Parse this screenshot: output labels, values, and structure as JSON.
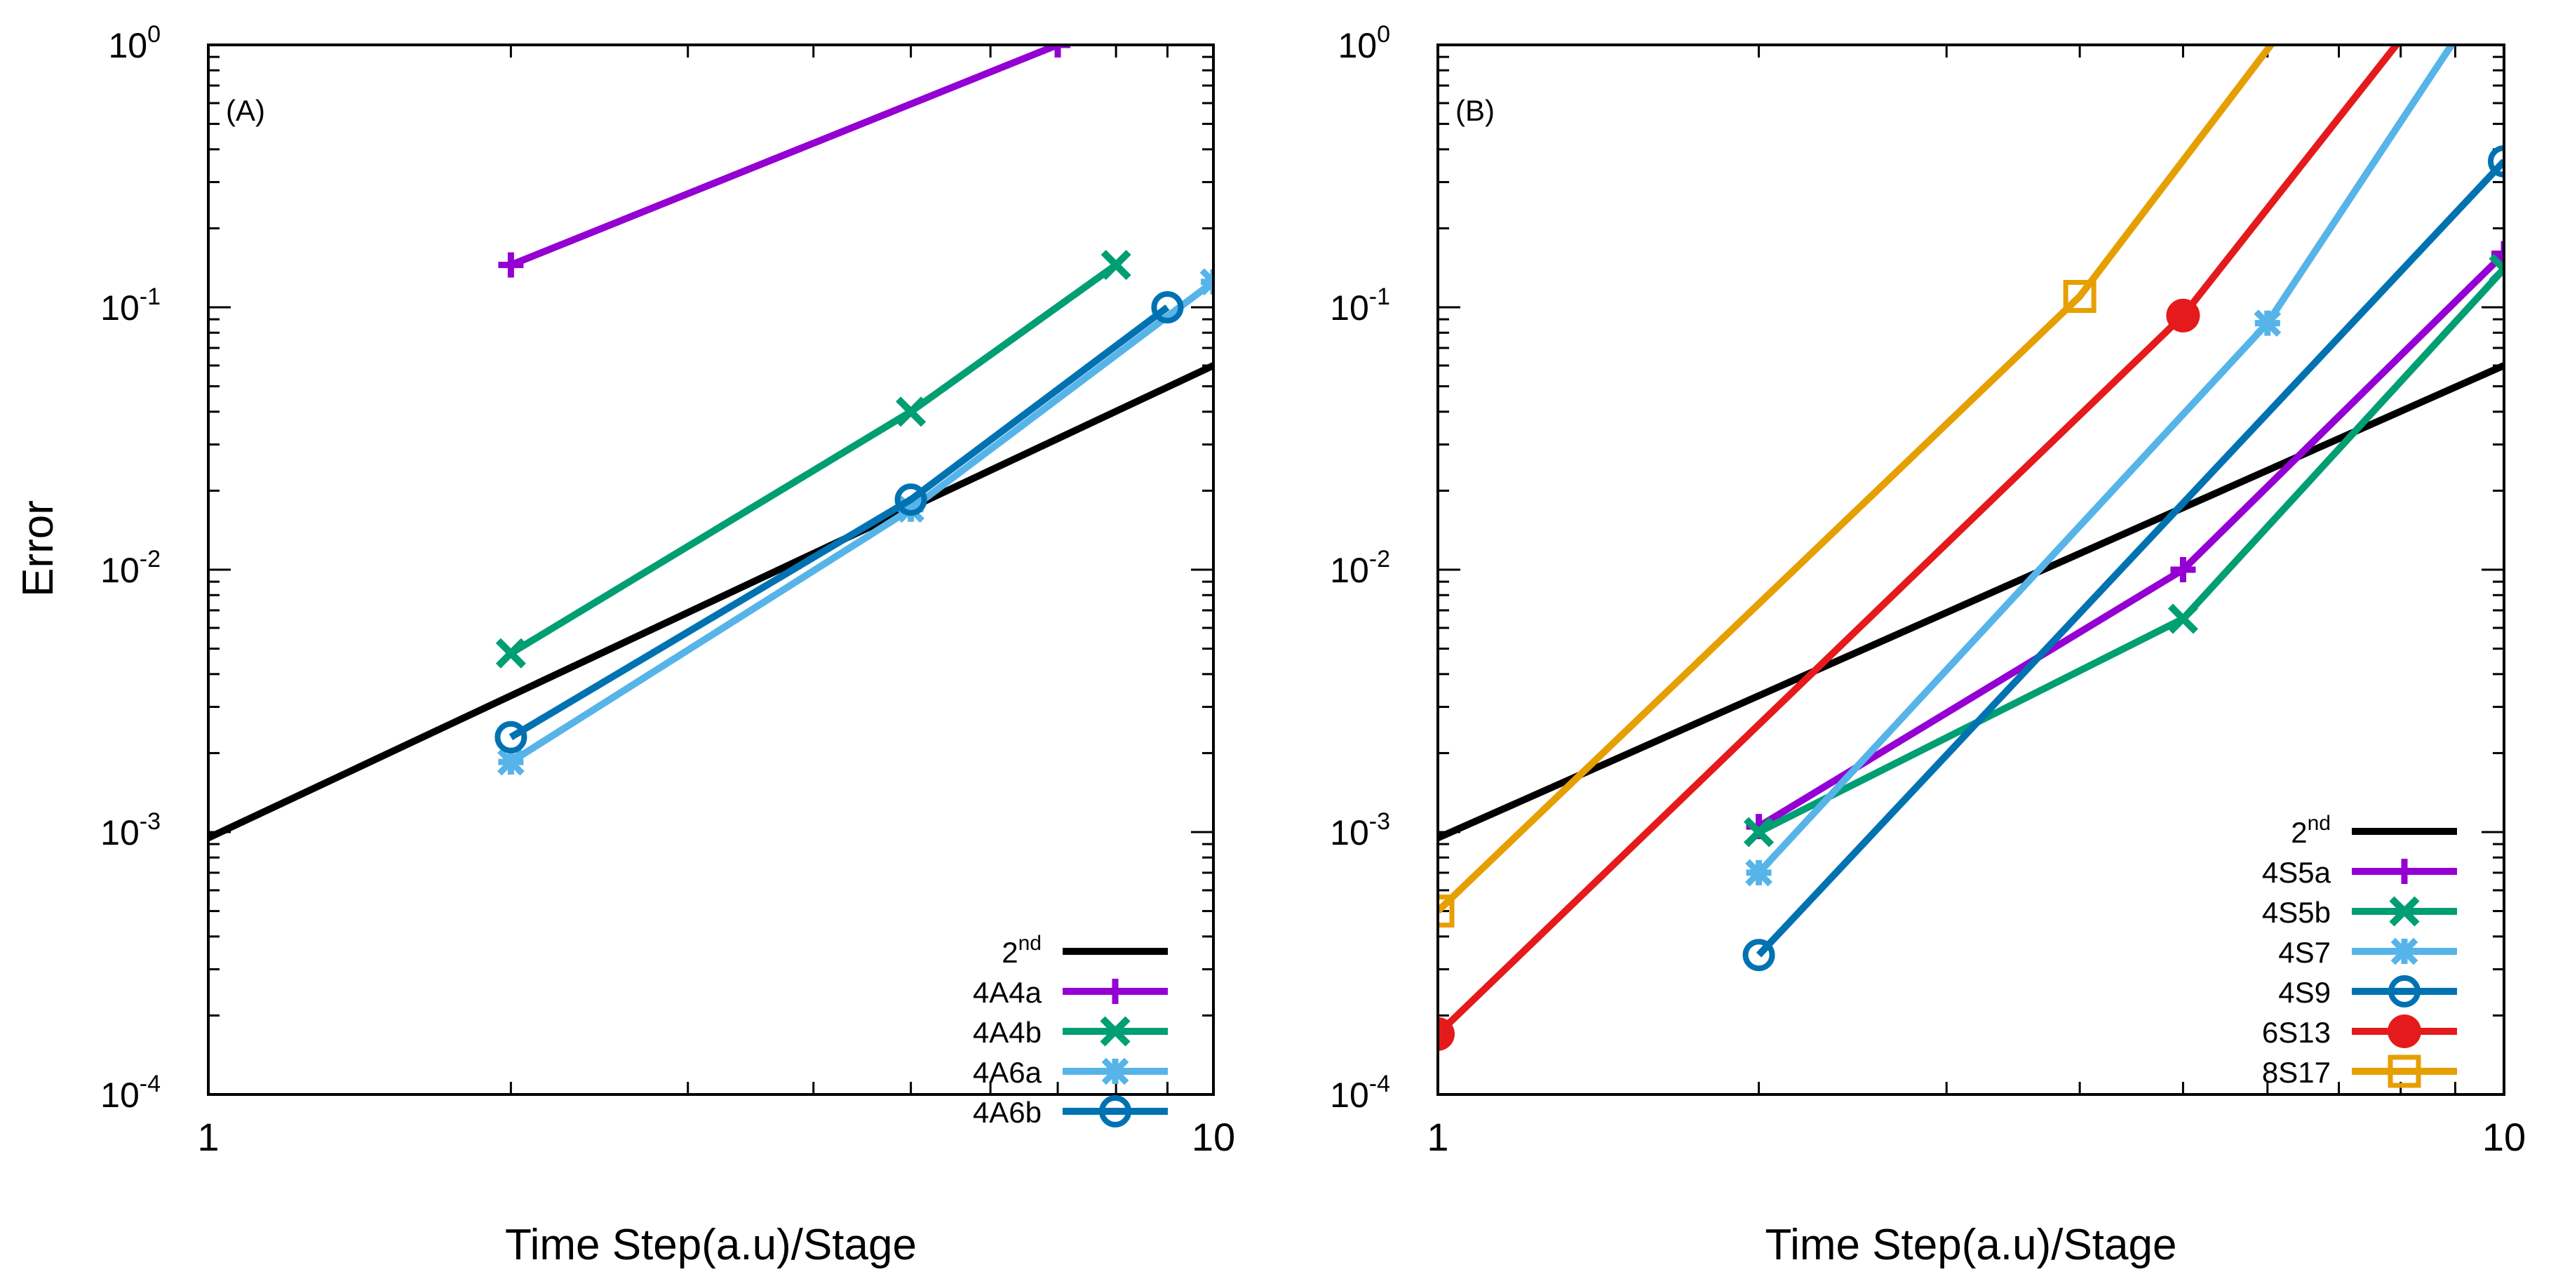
{
  "chart_data": [
    {
      "panel_label": "(A)",
      "type": "line",
      "xscale": "log",
      "yscale": "log",
      "xlim": [
        1,
        10
      ],
      "ylim": [
        0.0001,
        1
      ],
      "xlabel": "Time Step(a.u)/Stage",
      "ylabel": "Error",
      "x_ticks": [
        {
          "value": 1,
          "label": "1"
        },
        {
          "value": 10,
          "label": "10"
        }
      ],
      "y_ticks": [
        {
          "value": 0.0001,
          "base": "10",
          "exp": "-4"
        },
        {
          "value": 0.001,
          "base": "10",
          "exp": "-3"
        },
        {
          "value": 0.01,
          "base": "10",
          "exp": "-2"
        },
        {
          "value": 0.1,
          "base": "10",
          "exp": "-1"
        },
        {
          "value": 1,
          "base": "10",
          "exp": "0"
        }
      ],
      "legend_position": "bottom-right",
      "series": [
        {
          "name": "2nd",
          "name_base": "2",
          "name_sup": "nd",
          "color": "#000000",
          "marker": "none",
          "x": [
            1,
            10
          ],
          "y": [
            0.00095,
            0.06
          ]
        },
        {
          "name": "4A4a",
          "color": "#9400d3",
          "marker": "plus",
          "x": [
            2,
            7
          ],
          "y": [
            0.145,
            1.0
          ]
        },
        {
          "name": "4A4b",
          "color": "#009e73",
          "marker": "cross",
          "x": [
            2,
            5,
            8
          ],
          "y": [
            0.0048,
            0.04,
            0.145
          ]
        },
        {
          "name": "4A6a",
          "color": "#56b4e9",
          "marker": "star",
          "x": [
            2,
            5,
            10
          ],
          "y": [
            0.00185,
            0.017,
            0.125
          ]
        },
        {
          "name": "4A6b",
          "color": "#0072b2",
          "marker": "circle",
          "x": [
            2,
            5,
            9
          ],
          "y": [
            0.0023,
            0.0185,
            0.1
          ]
        }
      ]
    },
    {
      "panel_label": "(B)",
      "type": "line",
      "xscale": "log",
      "yscale": "log",
      "xlim": [
        1,
        10
      ],
      "ylim": [
        0.0001,
        1
      ],
      "xlabel": "Time Step(a.u)/Stage",
      "ylabel": "",
      "x_ticks": [
        {
          "value": 1,
          "label": "1"
        },
        {
          "value": 10,
          "label": "10"
        }
      ],
      "y_ticks": [
        {
          "value": 0.0001,
          "base": "10",
          "exp": "-4"
        },
        {
          "value": 0.001,
          "base": "10",
          "exp": "-3"
        },
        {
          "value": 0.01,
          "base": "10",
          "exp": "-2"
        },
        {
          "value": 0.1,
          "base": "10",
          "exp": "-1"
        },
        {
          "value": 1,
          "base": "10",
          "exp": "0"
        }
      ],
      "legend_position": "bottom-right",
      "series": [
        {
          "name": "2nd",
          "name_base": "2",
          "name_sup": "nd",
          "color": "#000000",
          "marker": "none",
          "x": [
            1,
            10
          ],
          "y": [
            0.00095,
            0.06
          ]
        },
        {
          "name": "4S5a",
          "color": "#9400d3",
          "marker": "plus",
          "x": [
            2,
            5,
            10
          ],
          "y": [
            0.00105,
            0.01,
            0.16
          ]
        },
        {
          "name": "4S5b",
          "color": "#009e73",
          "marker": "cross",
          "x": [
            2,
            5,
            10
          ],
          "y": [
            0.001,
            0.0065,
            0.14
          ]
        },
        {
          "name": "4S7",
          "color": "#56b4e9",
          "marker": "star",
          "x": [
            2,
            6,
            9
          ],
          "y": [
            0.0007,
            0.087,
            1.05
          ]
        },
        {
          "name": "4S9",
          "color": "#0072b2",
          "marker": "circle",
          "x": [
            2,
            10
          ],
          "y": [
            0.00034,
            0.36
          ]
        },
        {
          "name": "6S13",
          "color": "#e41a1c",
          "marker": "filled-circle",
          "x": [
            1,
            5,
            8
          ],
          "y": [
            0.00017,
            0.093,
            1.05
          ]
        },
        {
          "name": "8S17",
          "color": "#e69f00",
          "marker": "square",
          "x": [
            1,
            4,
            6.1
          ],
          "y": [
            0.0005,
            0.11,
            1.05
          ]
        }
      ]
    }
  ]
}
